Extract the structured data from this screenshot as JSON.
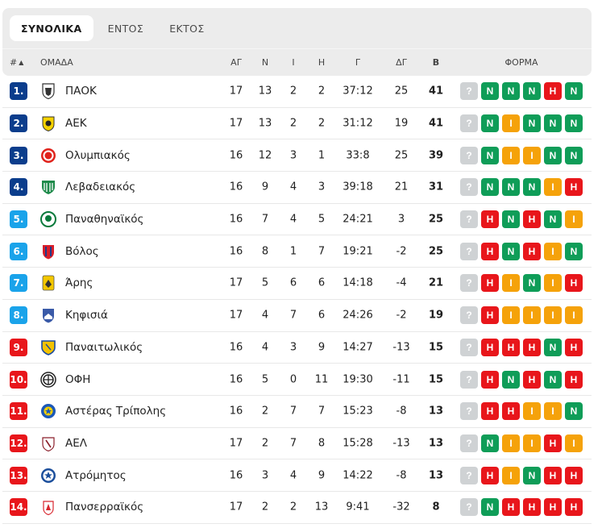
{
  "tabs": [
    {
      "label": "ΣΥΝΟΛΙΚΑ",
      "active": true
    },
    {
      "label": "ΕΝΤΟΣ",
      "active": false
    },
    {
      "label": "ΕΚΤΟΣ",
      "active": false
    }
  ],
  "header": {
    "rank": "#",
    "sort_icon": "▲",
    "team": "ΟΜΑΔΑ",
    "played": "ΑΓ",
    "wins": "Ν",
    "draws": "Ι",
    "losses": "Η",
    "goals": "Γ",
    "goal_diff": "ΔΓ",
    "points": "Β",
    "form": "ΦΟΡΜΑ"
  },
  "colors": {
    "rank_dark_blue": "#0b3d8c",
    "rank_light_blue": "#1aa3ea",
    "rank_red": "#e8161b",
    "form_win": "#0f9d58",
    "form_draw": "#f5a20a",
    "form_loss": "#e8161b",
    "form_unknown": "#cfd2d4"
  },
  "rows": [
    {
      "rank": "1.",
      "zone": "dark",
      "team": "ΠΑΟΚ",
      "crest": "paok",
      "played": "17",
      "w": "13",
      "d": "2",
      "l": "2",
      "goals": "37:12",
      "gd": "25",
      "pts": "41",
      "form": [
        "?",
        "N",
        "N",
        "N",
        "H",
        "N"
      ]
    },
    {
      "rank": "2.",
      "zone": "dark",
      "team": "ΑΕΚ",
      "crest": "aek",
      "played": "17",
      "w": "13",
      "d": "2",
      "l": "2",
      "goals": "31:12",
      "gd": "19",
      "pts": "41",
      "form": [
        "?",
        "N",
        "I",
        "N",
        "N",
        "N"
      ]
    },
    {
      "rank": "3.",
      "zone": "dark",
      "team": "Ολυμπιακός",
      "crest": "olympiacos",
      "played": "16",
      "w": "12",
      "d": "3",
      "l": "1",
      "goals": "33:8",
      "gd": "25",
      "pts": "39",
      "form": [
        "?",
        "N",
        "I",
        "I",
        "N",
        "N"
      ]
    },
    {
      "rank": "4.",
      "zone": "dark",
      "team": "Λεβαδειακός",
      "crest": "levadiakos",
      "played": "16",
      "w": "9",
      "d": "4",
      "l": "3",
      "goals": "39:18",
      "gd": "21",
      "pts": "31",
      "form": [
        "?",
        "N",
        "N",
        "N",
        "I",
        "H"
      ]
    },
    {
      "rank": "5.",
      "zone": "light",
      "team": "Παναθηναϊκός",
      "crest": "panathinaikos",
      "played": "16",
      "w": "7",
      "d": "4",
      "l": "5",
      "goals": "24:21",
      "gd": "3",
      "pts": "25",
      "form": [
        "?",
        "H",
        "N",
        "H",
        "N",
        "I"
      ]
    },
    {
      "rank": "6.",
      "zone": "light",
      "team": "Βόλος",
      "crest": "volos",
      "played": "16",
      "w": "8",
      "d": "1",
      "l": "7",
      "goals": "19:21",
      "gd": "-2",
      "pts": "25",
      "form": [
        "?",
        "H",
        "N",
        "H",
        "I",
        "N"
      ]
    },
    {
      "rank": "7.",
      "zone": "light",
      "team": "Άρης",
      "crest": "aris",
      "played": "17",
      "w": "5",
      "d": "6",
      "l": "6",
      "goals": "14:18",
      "gd": "-4",
      "pts": "21",
      "form": [
        "?",
        "H",
        "I",
        "N",
        "I",
        "H"
      ]
    },
    {
      "rank": "8.",
      "zone": "light",
      "team": "Κηφισιά",
      "crest": "kifisia",
      "played": "17",
      "w": "4",
      "d": "7",
      "l": "6",
      "goals": "24:26",
      "gd": "-2",
      "pts": "19",
      "form": [
        "?",
        "H",
        "I",
        "I",
        "I",
        "I"
      ]
    },
    {
      "rank": "9.",
      "zone": "red",
      "team": "Παναιτωλικός",
      "crest": "panetolikos",
      "played": "16",
      "w": "4",
      "d": "3",
      "l": "9",
      "goals": "14:27",
      "gd": "-13",
      "pts": "15",
      "form": [
        "?",
        "H",
        "H",
        "H",
        "N",
        "H"
      ]
    },
    {
      "rank": "10.",
      "zone": "red",
      "team": "ΟΦΗ",
      "crest": "ofi",
      "played": "16",
      "w": "5",
      "d": "0",
      "l": "11",
      "goals": "19:30",
      "gd": "-11",
      "pts": "15",
      "form": [
        "?",
        "H",
        "N",
        "H",
        "N",
        "H"
      ]
    },
    {
      "rank": "11.",
      "zone": "red",
      "team": "Αστέρας Τρίπολης",
      "crest": "asteras",
      "played": "16",
      "w": "2",
      "d": "7",
      "l": "7",
      "goals": "15:23",
      "gd": "-8",
      "pts": "13",
      "form": [
        "?",
        "H",
        "H",
        "I",
        "I",
        "N"
      ]
    },
    {
      "rank": "12.",
      "zone": "red",
      "team": "ΑΕΛ",
      "crest": "ael",
      "played": "17",
      "w": "2",
      "d": "7",
      "l": "8",
      "goals": "15:28",
      "gd": "-13",
      "pts": "13",
      "form": [
        "?",
        "N",
        "I",
        "I",
        "H",
        "I"
      ]
    },
    {
      "rank": "13.",
      "zone": "red",
      "team": "Ατρόμητος",
      "crest": "atromitos",
      "played": "16",
      "w": "3",
      "d": "4",
      "l": "9",
      "goals": "14:22",
      "gd": "-8",
      "pts": "13",
      "form": [
        "?",
        "H",
        "I",
        "N",
        "H",
        "H"
      ]
    },
    {
      "rank": "14.",
      "zone": "red",
      "team": "Πανσερραϊκός",
      "crest": "panserraikos",
      "played": "17",
      "w": "2",
      "d": "2",
      "l": "13",
      "goals": "9:41",
      "gd": "-32",
      "pts": "8",
      "form": [
        "?",
        "N",
        "H",
        "H",
        "H",
        "H"
      ]
    }
  ]
}
